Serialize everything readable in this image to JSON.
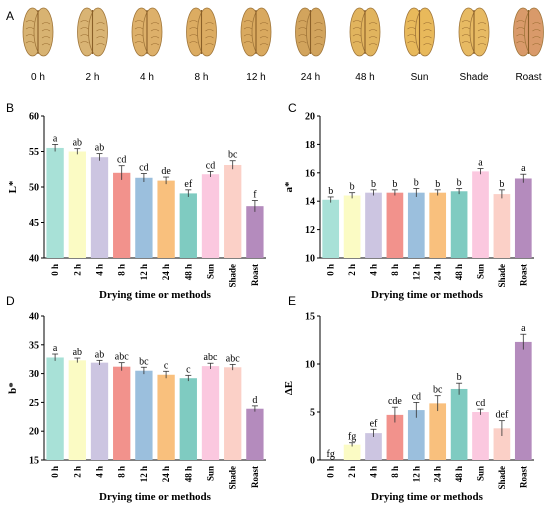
{
  "panels": [
    {
      "letter": "A"
    },
    {
      "letter": "B"
    },
    {
      "letter": "C"
    },
    {
      "letter": "D"
    },
    {
      "letter": "E"
    }
  ],
  "photo_row": {
    "labels": [
      "0 h",
      "2 h",
      "4 h",
      "8 h",
      "12 h",
      "24 h",
      "48 h",
      "Sun",
      "Shade",
      "Roast"
    ],
    "kernel_colors": [
      "#d8b372",
      "#d9b474",
      "#ddb06a",
      "#dcac62",
      "#d9a95f",
      "#d2a45d",
      "#e1b45e",
      "#e8b95b",
      "#e7ba63",
      "#d99a6a"
    ]
  },
  "bar_colors": [
    "#a8e1d7",
    "#fbfbc4",
    "#ccc5e1",
    "#f2928c",
    "#9bbfdd",
    "#f9c07d",
    "#7fcbc1",
    "#fbc8df",
    "#fbd0c7",
    "#b48bbd"
  ],
  "chart_data": [
    {
      "type": "bar",
      "panel": "B",
      "categories": [
        "0 h",
        "2 h",
        "4 h",
        "8 h",
        "12 h",
        "24 h",
        "48 h",
        "Sun",
        "Shade",
        "Roast"
      ],
      "values": [
        55.5,
        55.0,
        54.2,
        52.0,
        51.3,
        50.9,
        49.1,
        51.8,
        53.1,
        47.3
      ],
      "errors": [
        0.5,
        0.4,
        0.5,
        1.0,
        0.6,
        0.5,
        0.5,
        0.4,
        0.6,
        0.8
      ],
      "letters": [
        "a",
        "ab",
        "ab",
        "cd",
        "cd",
        "de",
        "ef",
        "cd",
        "bc",
        "f"
      ],
      "xlabel": "Drying time or methods",
      "ylabel": "L*",
      "ylim": [
        40,
        60
      ],
      "yticks": [
        40,
        45,
        50,
        55,
        60
      ]
    },
    {
      "type": "bar",
      "panel": "C",
      "categories": [
        "0 h",
        "2 h",
        "4 h",
        "8 h",
        "12 h",
        "24 h",
        "48 h",
        "Sun",
        "Shade",
        "Roast"
      ],
      "values": [
        14.1,
        14.4,
        14.6,
        14.6,
        14.6,
        14.6,
        14.7,
        16.1,
        14.5,
        15.6
      ],
      "errors": [
        0.2,
        0.2,
        0.2,
        0.2,
        0.3,
        0.2,
        0.2,
        0.2,
        0.3,
        0.3
      ],
      "letters": [
        "b",
        "b",
        "b",
        "b",
        "b",
        "b",
        "b",
        "a",
        "b",
        "a"
      ],
      "xlabel": "Drying time or methods",
      "ylabel": "a*",
      "ylim": [
        10,
        20
      ],
      "yticks": [
        10,
        12,
        14,
        16,
        18,
        20
      ]
    },
    {
      "type": "bar",
      "panel": "D",
      "categories": [
        "0 h",
        "2 h",
        "4 h",
        "8 h",
        "12 h",
        "24 h",
        "48 h",
        "Sun",
        "Shade",
        "Roast"
      ],
      "values": [
        32.8,
        32.3,
        31.9,
        31.2,
        30.5,
        29.8,
        29.2,
        31.3,
        31.1,
        23.9
      ],
      "errors": [
        0.6,
        0.4,
        0.4,
        0.7,
        0.6,
        0.6,
        0.5,
        0.5,
        0.5,
        0.5
      ],
      "letters": [
        "a",
        "ab",
        "ab",
        "abc",
        "bc",
        "c",
        "c",
        "abc",
        "abc",
        "d"
      ],
      "xlabel": "Drying time or methods",
      "ylabel": "b*",
      "ylim": [
        15,
        40
      ],
      "yticks": [
        15,
        20,
        25,
        30,
        35,
        40
      ]
    },
    {
      "type": "bar",
      "panel": "E",
      "categories": [
        "0 h",
        "2 h",
        "4 h",
        "8 h",
        "12 h",
        "24 h",
        "48 h",
        "Sun",
        "Shade",
        "Roast"
      ],
      "values": [
        0,
        1.6,
        2.8,
        4.7,
        5.2,
        5.9,
        7.4,
        5.0,
        3.3,
        12.3
      ],
      "errors": [
        0,
        0.2,
        0.4,
        0.8,
        0.8,
        0.8,
        0.6,
        0.3,
        0.8,
        0.8
      ],
      "letters": [
        "fg",
        "fg",
        "ef",
        "cde",
        "cd",
        "bc",
        "b",
        "cd",
        "def",
        "a"
      ],
      "xlabel": "Drying time or methods",
      "ylabel": "ΔE",
      "ylim": [
        0,
        15
      ],
      "yticks": [
        0,
        5,
        10,
        15
      ]
    }
  ]
}
